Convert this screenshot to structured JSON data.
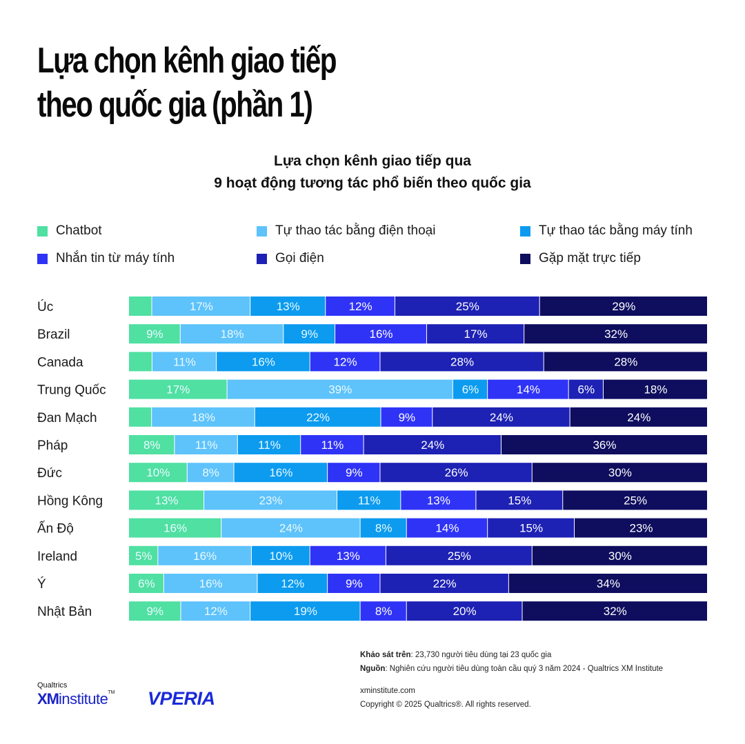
{
  "header": {
    "title_line1": "Lựa chọn kênh giao tiếp",
    "title_line2": "theo quốc gia (phần 1)"
  },
  "chart_data": {
    "type": "bar",
    "orientation": "horizontal",
    "stacked": true,
    "percent": true,
    "title_line1": "Lựa chọn kênh giao tiếp qua",
    "title_line2": "9 hoạt động tương tác phổ biến theo quốc gia",
    "legend_position": "top",
    "categories": [
      "Úc",
      "Brazil",
      "Canada",
      "Trung Quốc",
      "Đan Mạch",
      "Pháp",
      "Đức",
      "Hồng Kông",
      "Ấn Độ",
      "Ireland",
      "Ý",
      "Nhật Bản"
    ],
    "series": [
      {
        "name": "Chatbot",
        "color": "#4fe0a2",
        "values": [
          4,
          9,
          4,
          17,
          4,
          8,
          10,
          13,
          16,
          5,
          6,
          9
        ],
        "labels": [
          "",
          "9%",
          "",
          "17%",
          "",
          "8%",
          "10%",
          "13%",
          "16%",
          "5%",
          "6%",
          "9%"
        ]
      },
      {
        "name": "Tự thao tác bằng điện thoại",
        "color": "#5ec2fb",
        "values": [
          17,
          18,
          11,
          39,
          18,
          11,
          8,
          23,
          24,
          16,
          16,
          12
        ],
        "labels": [
          "17%",
          "18%",
          "11%",
          "39%",
          "18%",
          "11%",
          "8%",
          "23%",
          "24%",
          "16%",
          "16%",
          "12%"
        ]
      },
      {
        "name": "Tự thao tác bằng máy tính",
        "color": "#0c9bef",
        "values": [
          13,
          9,
          16,
          6,
          22,
          11,
          16,
          11,
          8,
          10,
          12,
          19
        ],
        "labels": [
          "13%",
          "9%",
          "16%",
          "6%",
          "22%",
          "11%",
          "16%",
          "11%",
          "8%",
          "10%",
          "12%",
          "19%"
        ]
      },
      {
        "name": "Nhắn tin từ máy tính",
        "color": "#2f33f6",
        "values": [
          12,
          16,
          12,
          14,
          9,
          11,
          9,
          13,
          14,
          13,
          9,
          8
        ],
        "labels": [
          "12%",
          "16%",
          "12%",
          "14%",
          "9%",
          "11%",
          "9%",
          "13%",
          "14%",
          "13%",
          "9%",
          "8%"
        ]
      },
      {
        "name": "Gọi điện",
        "color": "#1d21b4",
        "values": [
          25,
          17,
          28,
          6,
          24,
          24,
          26,
          15,
          15,
          25,
          22,
          20
        ],
        "labels": [
          "25%",
          "17%",
          "28%",
          "6%",
          "24%",
          "24%",
          "26%",
          "15%",
          "15%",
          "25%",
          "22%",
          "20%"
        ]
      },
      {
        "name": "Gặp mặt trực tiếp",
        "color": "#0e0d5e",
        "values": [
          29,
          32,
          28,
          18,
          24,
          36,
          30,
          25,
          23,
          30,
          34,
          32
        ],
        "labels": [
          "29%",
          "32%",
          "28%",
          "18%",
          "24%",
          "36%",
          "30%",
          "25%",
          "23%",
          "30%",
          "34%",
          "32%"
        ]
      }
    ]
  },
  "footer": {
    "survey_label": "Khảo sát trên",
    "survey_text": ": 23,730 người tiêu dùng tại 23 quốc gia",
    "source_label": "Nguồn",
    "source_text": ": Nghiên cứu người tiêu dùng toàn cầu quý 3 năm 2024 - Qualtrics XM Institute",
    "website": "xminstitute.com",
    "copyright": "Copyright © 2025 Qualtrics®. All rights reserved."
  },
  "logos": {
    "qualtrics": "Qualtrics",
    "xm": "XM",
    "institute": "institute",
    "tm": "TM",
    "vperia": "VPERIA"
  }
}
